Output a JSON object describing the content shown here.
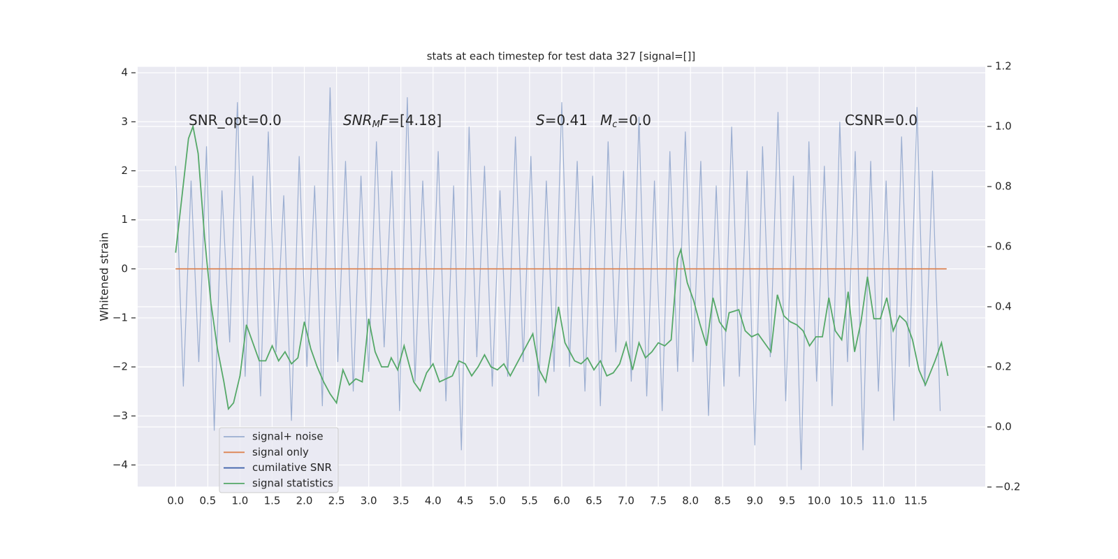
{
  "chart_data": {
    "type": "line",
    "title": "stats at each timestep for test data 327 [signal=[]]",
    "ylabel": "Whitened strain",
    "annotations": [
      [
        "SNR_opt=0.0"
      ],
      [
        "SNR",
        "M",
        "F",
        "=[4.18]"
      ],
      [
        "S",
        "=0.41"
      ],
      [
        "M",
        "c",
        "=0.0"
      ],
      [
        "CSNR=0.0"
      ]
    ],
    "xlim": [
      -0.59,
      12.58
    ],
    "ylim": [
      -4.45,
      4.13
    ],
    "y2lim": [
      -0.2,
      1.2
    ],
    "xticks": [
      {
        "value": 0,
        "label": "0.0"
      },
      {
        "value": 0.5,
        "label": "0.5"
      },
      {
        "value": 1,
        "label": "1.0"
      },
      {
        "value": 1.5,
        "label": "1.5"
      },
      {
        "value": 2,
        "label": "2.0"
      },
      {
        "value": 2.5,
        "label": "2.5"
      },
      {
        "value": 3,
        "label": "3.0"
      },
      {
        "value": 3.5,
        "label": "3.5"
      },
      {
        "value": 4,
        "label": "4.0"
      },
      {
        "value": 4.5,
        "label": "4.5"
      },
      {
        "value": 5,
        "label": "5.0"
      },
      {
        "value": 5.5,
        "label": "5.5"
      },
      {
        "value": 6,
        "label": "6.0"
      },
      {
        "value": 6.5,
        "label": "6.5"
      },
      {
        "value": 7,
        "label": "7.0"
      },
      {
        "value": 7.5,
        "label": "7.5"
      },
      {
        "value": 8,
        "label": "8.0"
      },
      {
        "value": 8.5,
        "label": "8.5"
      },
      {
        "value": 9,
        "label": "9.0"
      },
      {
        "value": 9.5,
        "label": "9.5"
      },
      {
        "value": 10,
        "label": "10.0"
      },
      {
        "value": 10.5,
        "label": "10.5"
      },
      {
        "value": 11,
        "label": "11.0"
      },
      {
        "value": 11.5,
        "label": "11.5"
      }
    ],
    "yticks": [
      {
        "value": -4,
        "label": "−4"
      },
      {
        "value": -3,
        "label": "−3"
      },
      {
        "value": -2,
        "label": "−2"
      },
      {
        "value": -1,
        "label": "−1"
      },
      0,
      1,
      2,
      3,
      4
    ],
    "y2ticks": [
      {
        "value": -0.2,
        "label": "−0.2"
      },
      {
        "value": 0,
        "label": "0.0"
      },
      {
        "value": 0.2,
        "label": "0.2"
      },
      {
        "value": 0.4,
        "label": "0.4"
      },
      {
        "value": 0.6,
        "label": "0.6"
      },
      {
        "value": 0.8,
        "label": "0.8"
      },
      {
        "value": 1.0,
        "label": "1.0"
      },
      {
        "value": 1.2,
        "label": "1.2"
      }
    ],
    "grid": true,
    "legend": "lower left",
    "series": [
      {
        "name": "signal+ noise",
        "color": "#4c72b0",
        "opacity": 0.5,
        "x": [
          0,
          0.12,
          0.24,
          0.36,
          0.48,
          0.6,
          0.72,
          0.84,
          0.96,
          1.08,
          1.2,
          1.32,
          1.44,
          1.56,
          1.68,
          1.8,
          1.92,
          2.04,
          2.16,
          2.28,
          2.4,
          2.52,
          2.64,
          2.76,
          2.88,
          3.0,
          3.12,
          3.24,
          3.36,
          3.48,
          3.6,
          3.72,
          3.84,
          3.96,
          4.08,
          4.2,
          4.32,
          4.44,
          4.56,
          4.68,
          4.8,
          4.92,
          5.04,
          5.16,
          5.28,
          5.4,
          5.52,
          5.64,
          5.76,
          5.88,
          6.0,
          6.12,
          6.24,
          6.36,
          6.48,
          6.6,
          6.72,
          6.84,
          6.96,
          7.08,
          7.2,
          7.32,
          7.44,
          7.56,
          7.68,
          7.8,
          7.92,
          8.04,
          8.16,
          8.28,
          8.4,
          8.52,
          8.64,
          8.76,
          8.88,
          9.0,
          9.12,
          9.24,
          9.36,
          9.48,
          9.6,
          9.72,
          9.84,
          9.96,
          10.08,
          10.2,
          10.32,
          10.44,
          10.56,
          10.68,
          10.8,
          10.92,
          11.04,
          11.16,
          11.28,
          11.4,
          11.52,
          11.64,
          11.76,
          11.88
        ],
        "values": [
          2.1,
          -2.4,
          1.8,
          -1.9,
          2.5,
          -3.3,
          1.6,
          -1.5,
          3.4,
          -2.2,
          1.9,
          -2.6,
          2.8,
          -1.7,
          1.5,
          -3.1,
          2.3,
          -2.0,
          1.7,
          -2.8,
          3.7,
          -1.9,
          2.2,
          -2.5,
          1.9,
          -2.1,
          2.6,
          -1.6,
          2.0,
          -2.9,
          3.5,
          -2.3,
          1.8,
          -2.0,
          2.4,
          -2.7,
          1.7,
          -3.7,
          2.9,
          -1.8,
          2.1,
          -2.4,
          1.6,
          -2.2,
          2.7,
          -1.9,
          2.3,
          -2.6,
          1.8,
          -2.1,
          3.4,
          -2.0,
          2.2,
          -2.5,
          1.9,
          -2.8,
          2.6,
          -1.7,
          2.0,
          -2.3,
          3.1,
          -2.6,
          1.8,
          -2.9,
          2.4,
          -2.1,
          2.8,
          -1.9,
          2.2,
          -3.0,
          1.7,
          -2.4,
          2.9,
          -2.2,
          2.0,
          -3.6,
          2.5,
          -1.8,
          3.2,
          -2.7,
          1.9,
          -4.1,
          2.6,
          -2.3,
          2.1,
          -2.8,
          3.0,
          -1.9,
          2.4,
          -3.7,
          2.2,
          -2.5,
          1.8,
          -3.1,
          2.7,
          -2.0,
          3.3,
          -2.4,
          2.0,
          -2.9
        ]
      },
      {
        "name": "signal only",
        "color": "#dd8452",
        "opacity": 1,
        "x": [
          0,
          11.98
        ],
        "values": [
          0,
          0
        ]
      },
      {
        "name": "cumilative SNR",
        "color": "#3a5ea8",
        "opacity": 1,
        "axis": "y2",
        "x": [],
        "values": []
      },
      {
        "name": "signal statistics",
        "color": "#55a868",
        "opacity": 1,
        "axis": "y2",
        "x": [
          0,
          0.1,
          0.2,
          0.27,
          0.35,
          0.45,
          0.55,
          0.65,
          0.75,
          0.82,
          0.9,
          1.0,
          1.1,
          1.2,
          1.3,
          1.4,
          1.5,
          1.6,
          1.7,
          1.8,
          1.9,
          2.0,
          2.1,
          2.2,
          2.3,
          2.4,
          2.5,
          2.6,
          2.7,
          2.8,
          2.9,
          3.0,
          3.1,
          3.2,
          3.3,
          3.35,
          3.45,
          3.55,
          3.7,
          3.8,
          3.9,
          4.0,
          4.1,
          4.2,
          4.3,
          4.4,
          4.5,
          4.6,
          4.7,
          4.8,
          4.9,
          5.0,
          5.1,
          5.2,
          5.3,
          5.4,
          5.55,
          5.65,
          5.75,
          5.85,
          5.95,
          6.05,
          6.2,
          6.3,
          6.4,
          6.5,
          6.6,
          6.7,
          6.8,
          6.9,
          7.0,
          7.1,
          7.2,
          7.3,
          7.4,
          7.5,
          7.6,
          7.7,
          7.8,
          7.85,
          7.95,
          8.05,
          8.15,
          8.25,
          8.35,
          8.45,
          8.55,
          8.6,
          8.75,
          8.85,
          8.95,
          9.05,
          9.15,
          9.25,
          9.35,
          9.45,
          9.55,
          9.65,
          9.75,
          9.85,
          9.95,
          10.05,
          10.15,
          10.25,
          10.35,
          10.45,
          10.55,
          10.65,
          10.75,
          10.85,
          10.95,
          11.05,
          11.15,
          11.25,
          11.35,
          11.45,
          11.55,
          11.65,
          11.8,
          11.9,
          12.0
        ],
        "values": [
          0.58,
          0.77,
          0.96,
          1.0,
          0.91,
          0.63,
          0.41,
          0.26,
          0.15,
          0.06,
          0.08,
          0.17,
          0.34,
          0.28,
          0.22,
          0.22,
          0.27,
          0.22,
          0.25,
          0.21,
          0.23,
          0.35,
          0.26,
          0.2,
          0.15,
          0.11,
          0.08,
          0.19,
          0.14,
          0.16,
          0.15,
          0.36,
          0.25,
          0.2,
          0.2,
          0.23,
          0.19,
          0.27,
          0.15,
          0.12,
          0.18,
          0.21,
          0.15,
          0.16,
          0.17,
          0.22,
          0.21,
          0.17,
          0.2,
          0.24,
          0.2,
          0.19,
          0.21,
          0.17,
          0.21,
          0.25,
          0.31,
          0.19,
          0.15,
          0.27,
          0.4,
          0.28,
          0.22,
          0.21,
          0.23,
          0.19,
          0.22,
          0.17,
          0.18,
          0.21,
          0.28,
          0.19,
          0.28,
          0.23,
          0.25,
          0.28,
          0.27,
          0.29,
          0.56,
          0.59,
          0.48,
          0.42,
          0.34,
          0.27,
          0.43,
          0.35,
          0.32,
          0.38,
          0.39,
          0.32,
          0.3,
          0.31,
          0.28,
          0.25,
          0.44,
          0.37,
          0.35,
          0.34,
          0.32,
          0.27,
          0.3,
          0.3,
          0.43,
          0.32,
          0.29,
          0.45,
          0.25,
          0.35,
          0.5,
          0.36,
          0.36,
          0.43,
          0.32,
          0.37,
          0.35,
          0.29,
          0.19,
          0.14,
          0.22,
          0.28,
          0.17
        ]
      }
    ]
  }
}
